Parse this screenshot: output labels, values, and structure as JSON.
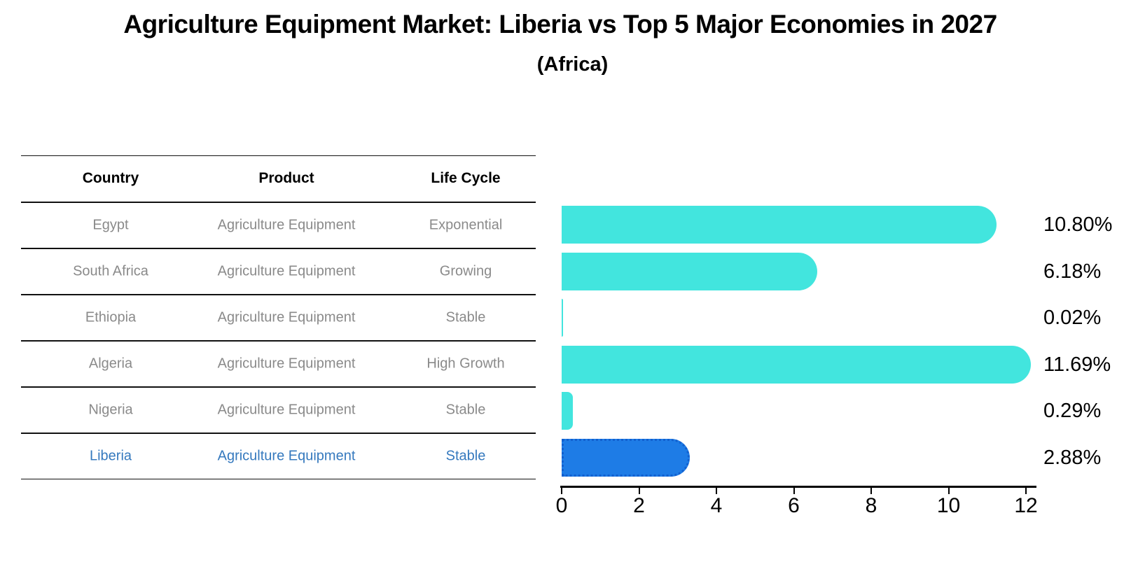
{
  "title": "Agriculture Equipment Market: Liberia vs Top 5 Major Economies in 2027",
  "subtitle": "(Africa)",
  "table": {
    "headers": [
      "Country",
      "Product",
      "Life Cycle"
    ],
    "rows": [
      {
        "country": "Egypt",
        "product": "Agriculture Equipment",
        "life_cycle": "Exponential",
        "value_label": "10.80%",
        "highlight": false
      },
      {
        "country": "South Africa",
        "product": "Agriculture Equipment",
        "life_cycle": "Growing",
        "value_label": "6.18%",
        "highlight": false
      },
      {
        "country": "Ethiopia",
        "product": "Agriculture Equipment",
        "life_cycle": "Stable",
        "value_label": "0.02%",
        "highlight": false
      },
      {
        "country": "Algeria",
        "product": "Agriculture Equipment",
        "life_cycle": "High Growth",
        "value_label": "11.69%",
        "highlight": false
      },
      {
        "country": "Nigeria",
        "product": "Agriculture Equipment",
        "life_cycle": "Stable",
        "value_label": "0.29%",
        "highlight": false
      },
      {
        "country": "Liberia",
        "product": "Agriculture Equipment",
        "life_cycle": "Stable",
        "value_label": "2.88%",
        "highlight": true
      }
    ]
  },
  "chart_data": {
    "type": "bar",
    "orientation": "horizontal",
    "title": "Agriculture Equipment Market: Liberia vs Top 5 Major Economies in 2027",
    "subtitle": "(Africa)",
    "categories": [
      "Egypt",
      "South Africa",
      "Ethiopia",
      "Algeria",
      "Nigeria",
      "Liberia"
    ],
    "values": [
      10.8,
      6.18,
      0.02,
      11.69,
      0.29,
      2.88
    ],
    "value_labels": [
      "10.80%",
      "6.18%",
      "0.02%",
      "11.69%",
      "0.29%",
      "2.88%"
    ],
    "x_ticks": [
      0,
      2,
      4,
      6,
      8,
      10,
      12
    ],
    "x_tick_labels": [
      "0",
      "2",
      "4",
      "6",
      "8",
      "10",
      "12"
    ],
    "xlim": [
      0,
      12
    ],
    "xlabel": "",
    "ylabel": "",
    "grid": false,
    "legend": false,
    "bar_color": "#42E5DE",
    "highlight_bar_color": "#1E7CE6",
    "highlight_border_color": "#1260CF",
    "highlight_text_color": "#3579BE",
    "highlight_index": 5
  }
}
